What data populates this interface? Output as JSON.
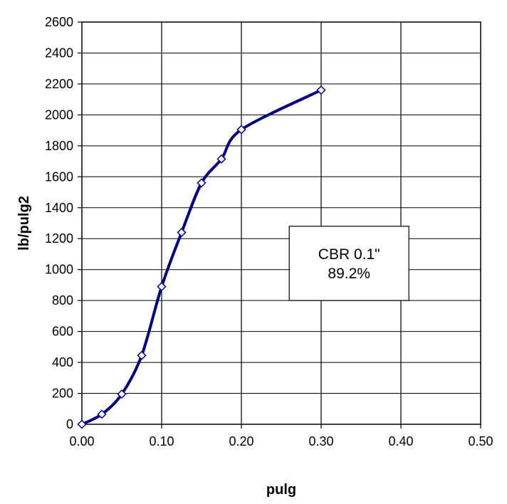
{
  "chart_data": {
    "type": "line",
    "xlabel": "pulg",
    "ylabel": "lb/pulg2",
    "xlim": [
      0,
      0.5
    ],
    "ylim": [
      0,
      2600
    ],
    "x_ticks": [
      "0.00",
      "0.10",
      "0.20",
      "0.30",
      "0.40",
      "0.50"
    ],
    "y_ticks": [
      "0",
      "200",
      "400",
      "600",
      "800",
      "1000",
      "1200",
      "1400",
      "1600",
      "1800",
      "2000",
      "2200",
      "2400",
      "2600"
    ],
    "grid": true,
    "series": [
      {
        "x": [
          0.0,
          0.025,
          0.05,
          0.075,
          0.1,
          0.125,
          0.15,
          0.175,
          0.2,
          0.3
        ],
        "y": [
          0,
          65,
          195,
          445,
          890,
          1240,
          1560,
          1715,
          1905,
          2160
        ],
        "color": "#000080",
        "marker": "diamond"
      }
    ],
    "annotation": {
      "lines": [
        "CBR 0.1\"",
        "89.2%"
      ]
    }
  }
}
